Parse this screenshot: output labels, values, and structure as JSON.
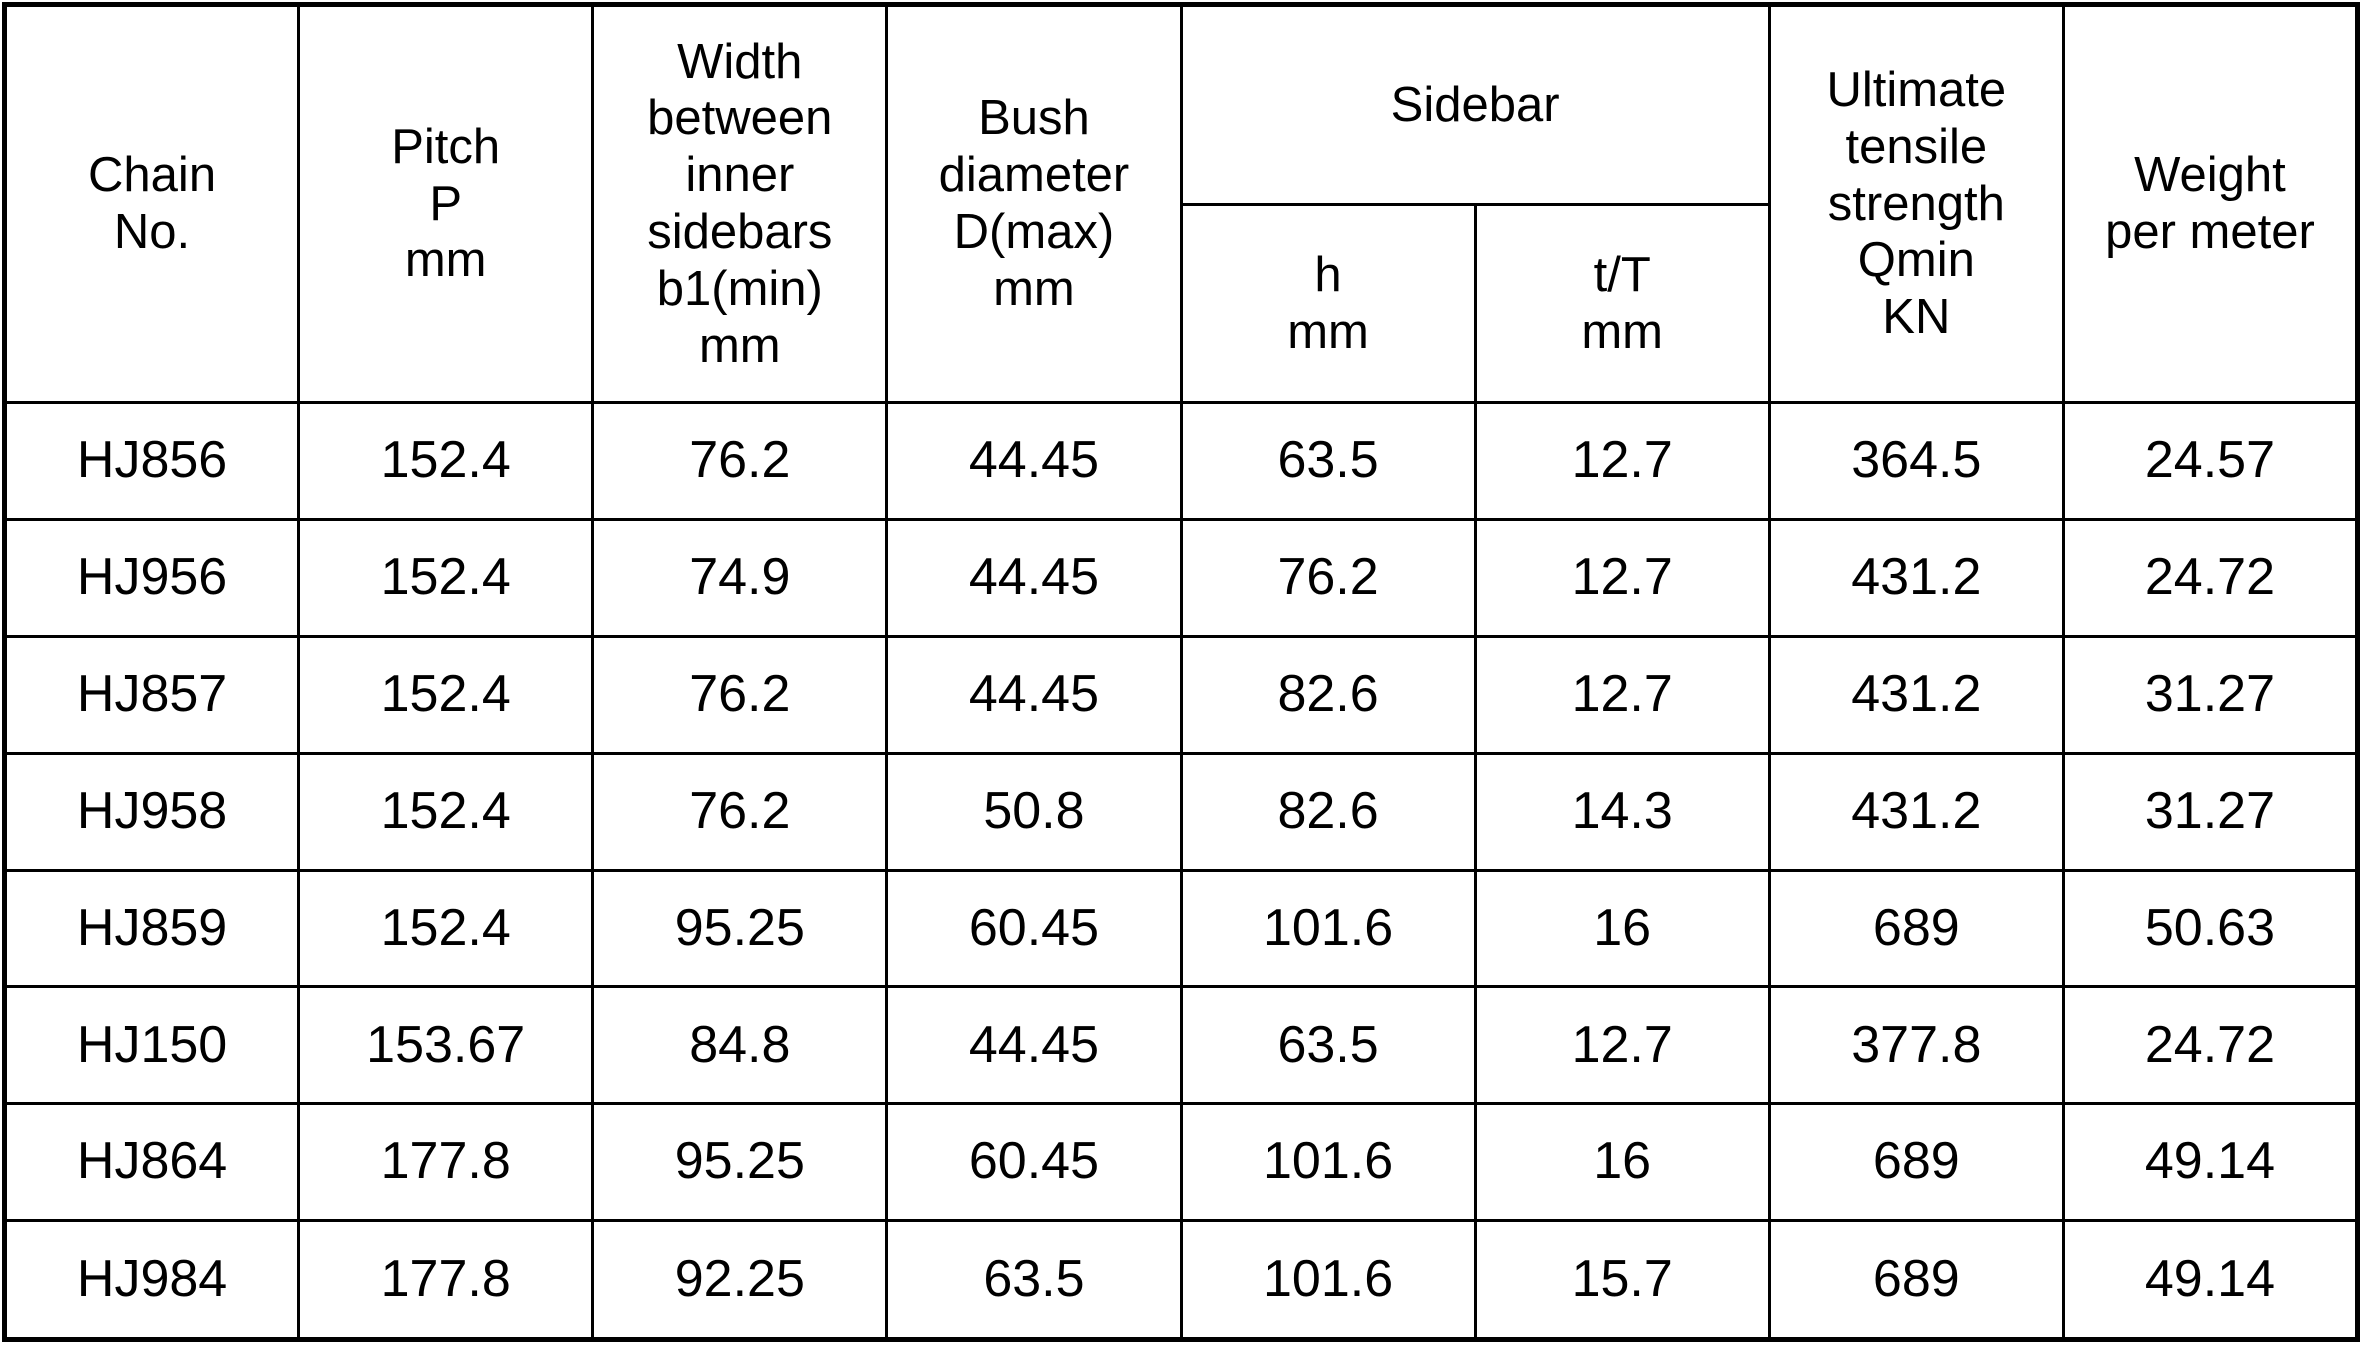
{
  "chart_data": {
    "type": "table",
    "title": "",
    "columns": [
      "Chain No.",
      "Pitch P mm",
      "Width between inner sidebars b1(min) mm",
      "Bush diameter D(max) mm",
      "Sidebar h mm",
      "Sidebar t/T mm",
      "Ultimate tensile strength Qmin KN",
      "Weight per meter"
    ],
    "column_group": {
      "label": "Sidebar",
      "children": [
        "h mm",
        "t/T mm"
      ]
    },
    "rows": [
      [
        "HJ856",
        "152.4",
        "76.2",
        "44.45",
        "63.5",
        "12.7",
        "364.5",
        "24.57"
      ],
      [
        "HJ956",
        "152.4",
        "74.9",
        "44.45",
        "76.2",
        "12.7",
        "431.2",
        "24.72"
      ],
      [
        "HJ857",
        "152.4",
        "76.2",
        "44.45",
        "82.6",
        "12.7",
        "431.2",
        "31.27"
      ],
      [
        "HJ958",
        "152.4",
        "76.2",
        "50.8",
        "82.6",
        "14.3",
        "431.2",
        "31.27"
      ],
      [
        "HJ859",
        "152.4",
        "95.25",
        "60.45",
        "101.6",
        "16",
        "689",
        "50.63"
      ],
      [
        "HJ150",
        "153.67",
        "84.8",
        "44.45",
        "63.5",
        "12.7",
        "377.8",
        "24.72"
      ],
      [
        "HJ864",
        "177.8",
        "95.25",
        "60.45",
        "101.6",
        "16",
        "689",
        "49.14"
      ],
      [
        "HJ984",
        "177.8",
        "92.25",
        "63.5",
        "101.6",
        "15.7",
        "689",
        "49.14"
      ]
    ]
  },
  "headers": {
    "chain_no": "Chain\nNo.",
    "pitch": "Pitch\nP\nmm",
    "width_inner_sidebars": "Width\nbetween\ninner\nsidebars\nb1(min)\nmm",
    "bush_diameter": "Bush\ndiameter\nD(max)\nmm",
    "sidebar_group": "Sidebar",
    "sidebar_h": "h\nmm",
    "sidebar_tT": "t/T\nmm",
    "ultimate_tensile": "Ultimate\ntensile\nstrength\nQmin\nKN",
    "weight": "Weight\nper meter"
  },
  "colors": {
    "border": "#000000",
    "text": "#000000",
    "background": "#ffffff"
  }
}
